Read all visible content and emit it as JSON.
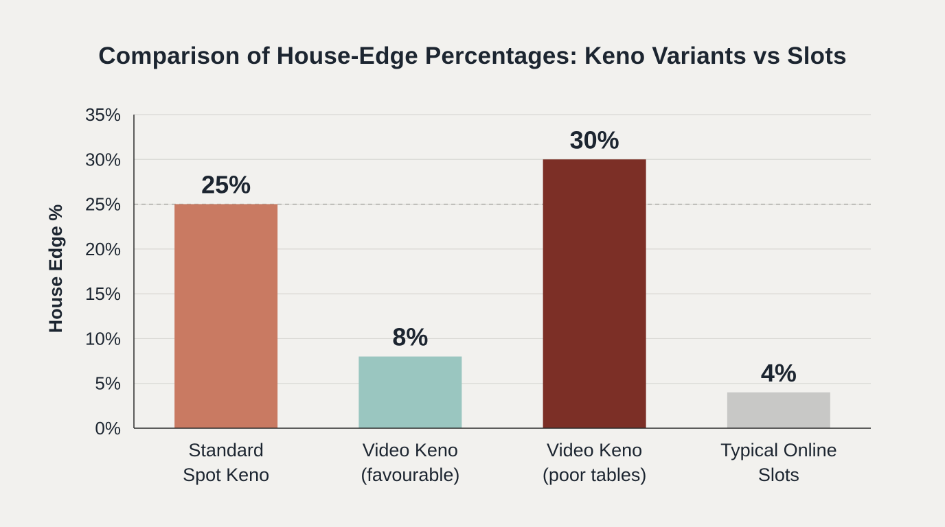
{
  "chart_data": {
    "type": "bar",
    "title": "Comparison of House-Edge Percentages: Keno Variants vs Slots",
    "xlabel": "",
    "ylabel": "House Edge %",
    "categories": [
      [
        "Standard",
        "Spot Keno"
      ],
      [
        "Video Keno",
        "(favourable)"
      ],
      [
        "Video Keno",
        "(poor tables)"
      ],
      [
        "Typical Online",
        "Slots"
      ]
    ],
    "values": [
      25,
      8,
      30,
      4
    ],
    "data_labels": [
      "25%",
      "8%",
      "30%",
      "4%"
    ],
    "bar_colors": [
      "#c97a62",
      "#9ac6c0",
      "#7c2f26",
      "#c8c8c6"
    ],
    "ylim": [
      0,
      35
    ],
    "yticks": [
      0,
      5,
      10,
      15,
      20,
      25,
      30,
      35
    ],
    "ytick_labels": [
      "0%",
      "5%",
      "10%",
      "15%",
      "20%",
      "25%",
      "30%",
      "35%"
    ],
    "reference_line": 25,
    "grid": true,
    "legend": "none"
  }
}
